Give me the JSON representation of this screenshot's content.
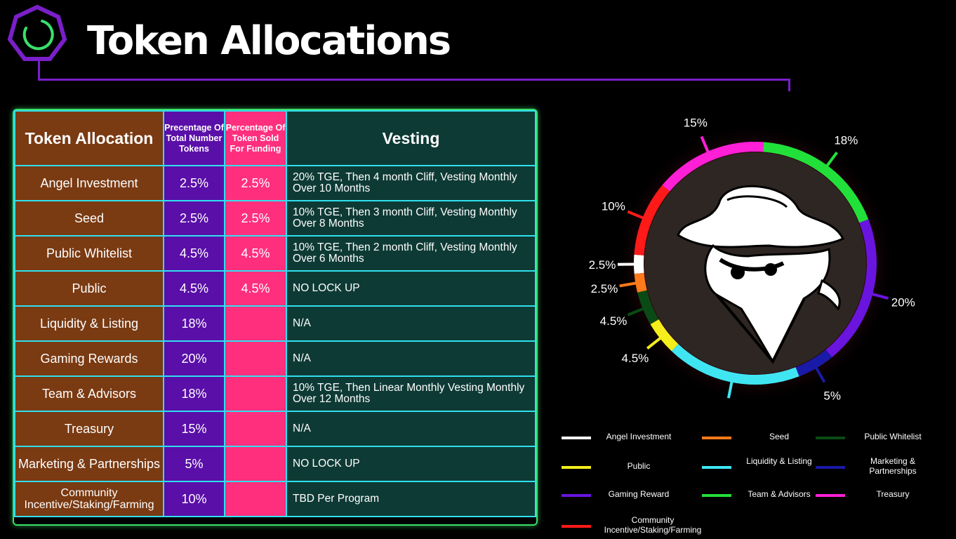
{
  "title": "Token Allocations",
  "table": {
    "headers": {
      "allocation": "Token Allocation",
      "pct_total": "Precentage Of Total Number Tokens",
      "pct_sold": "Percentage Of Token Sold For Funding",
      "vesting": "Vesting"
    },
    "rows": [
      {
        "name": "Angel Investment",
        "total": "2.5%",
        "sold": "2.5%",
        "vesting": "20% TGE, Then 4 month Cliff, Vesting Monthly Over 10 Months"
      },
      {
        "name": "Seed",
        "total": "2.5%",
        "sold": "2.5%",
        "vesting": "10% TGE, Then 3 month Cliff, Vesting Monthly Over 8 Months"
      },
      {
        "name": "Public Whitelist",
        "total": "4.5%",
        "sold": "4.5%",
        "vesting": "10% TGE, Then 2 month Cliff, Vesting Monthly Over 6 Months"
      },
      {
        "name": "Public",
        "total": "4.5%",
        "sold": "4.5%",
        "vesting": "NO LOCK UP"
      },
      {
        "name": "Liquidity & Listing",
        "total": "18%",
        "sold": "",
        "vesting": "N/A"
      },
      {
        "name": "Gaming Rewards",
        "total": "20%",
        "sold": "",
        "vesting": "N/A"
      },
      {
        "name": "Team & Advisors",
        "total": "18%",
        "sold": "",
        "vesting": "10% TGE, Then Linear Monthly Vesting Monthly Over 12 Months"
      },
      {
        "name": "Treasury",
        "total": "15%",
        "sold": "",
        "vesting": "N/A"
      },
      {
        "name": "Marketing & Partnerships",
        "total": "5%",
        "sold": "",
        "vesting": "NO LOCK UP"
      },
      {
        "name": "Community Incentive/Staking/Farming",
        "total": "10%",
        "sold": "",
        "vesting": "TBD Per Program"
      }
    ]
  },
  "chart_data": {
    "type": "pie",
    "style": "donut ring",
    "slices": [
      {
        "label": "Angel Investment",
        "value": 2.5,
        "text": "2.5%",
        "color": "#ffffff"
      },
      {
        "label": "Community Incentive/Staking/Farming",
        "value": 10,
        "text": "10%",
        "color": "#ff1a1a"
      },
      {
        "label": "Treasury",
        "value": 15,
        "text": "15%",
        "color": "#ff1fd6"
      },
      {
        "label": "Team & Advisors",
        "value": 18,
        "text": "18%",
        "color": "#22e03a"
      },
      {
        "label": "Gaming Reward",
        "value": 20,
        "text": "20%",
        "color": "#6a14e0"
      },
      {
        "label": "Marketing & Partnerships",
        "value": 5,
        "text": "5%",
        "color": "#1a1aa8"
      },
      {
        "label": "Liquidity & Listing",
        "value": 18,
        "text": "18%",
        "color": "#3fe6f2"
      },
      {
        "label": "Public",
        "value": 4.5,
        "text": "4.5%",
        "color": "#f4ee1a"
      },
      {
        "label": "Public Whitelist",
        "value": 4.5,
        "text": "4.5%",
        "color": "#0a4a14"
      },
      {
        "label": "Seed",
        "value": 2.5,
        "text": "2.5%",
        "color": "#ff7a1a"
      }
    ],
    "legend": [
      {
        "label": "Angel Investment",
        "color": "#ffffff"
      },
      {
        "label": "Seed",
        "color": "#ff7a1a"
      },
      {
        "label": "Public Whitelist",
        "color": "#0a4a14"
      },
      {
        "label": "Public",
        "color": "#f4ee1a"
      },
      {
        "label": "Liquidity & Listing",
        "color": "#3fe6f2"
      },
      {
        "label": "Marketing & Partnerships",
        "color": "#1a1aa8"
      },
      {
        "label": "Gaming Reward",
        "color": "#6a14e0"
      },
      {
        "label": "Team & Advisors",
        "color": "#22e03a"
      },
      {
        "label": "Treasury",
        "color": "#ff1fd6"
      },
      {
        "label": "Community Incentive/Staking/Farming",
        "color": "#ff1a1a"
      }
    ]
  },
  "colors": {
    "accent_purple": "#7a1fc9",
    "allocation_col": "#7a3a12",
    "total_col": "#5a0fa8",
    "sold_col": "#ff2f7e",
    "vesting_col": "#0e3a35",
    "grid_border": "#2fe0ef"
  },
  "icons": [
    "logo-heptagon-icon",
    "masked-bandit-icon"
  ]
}
